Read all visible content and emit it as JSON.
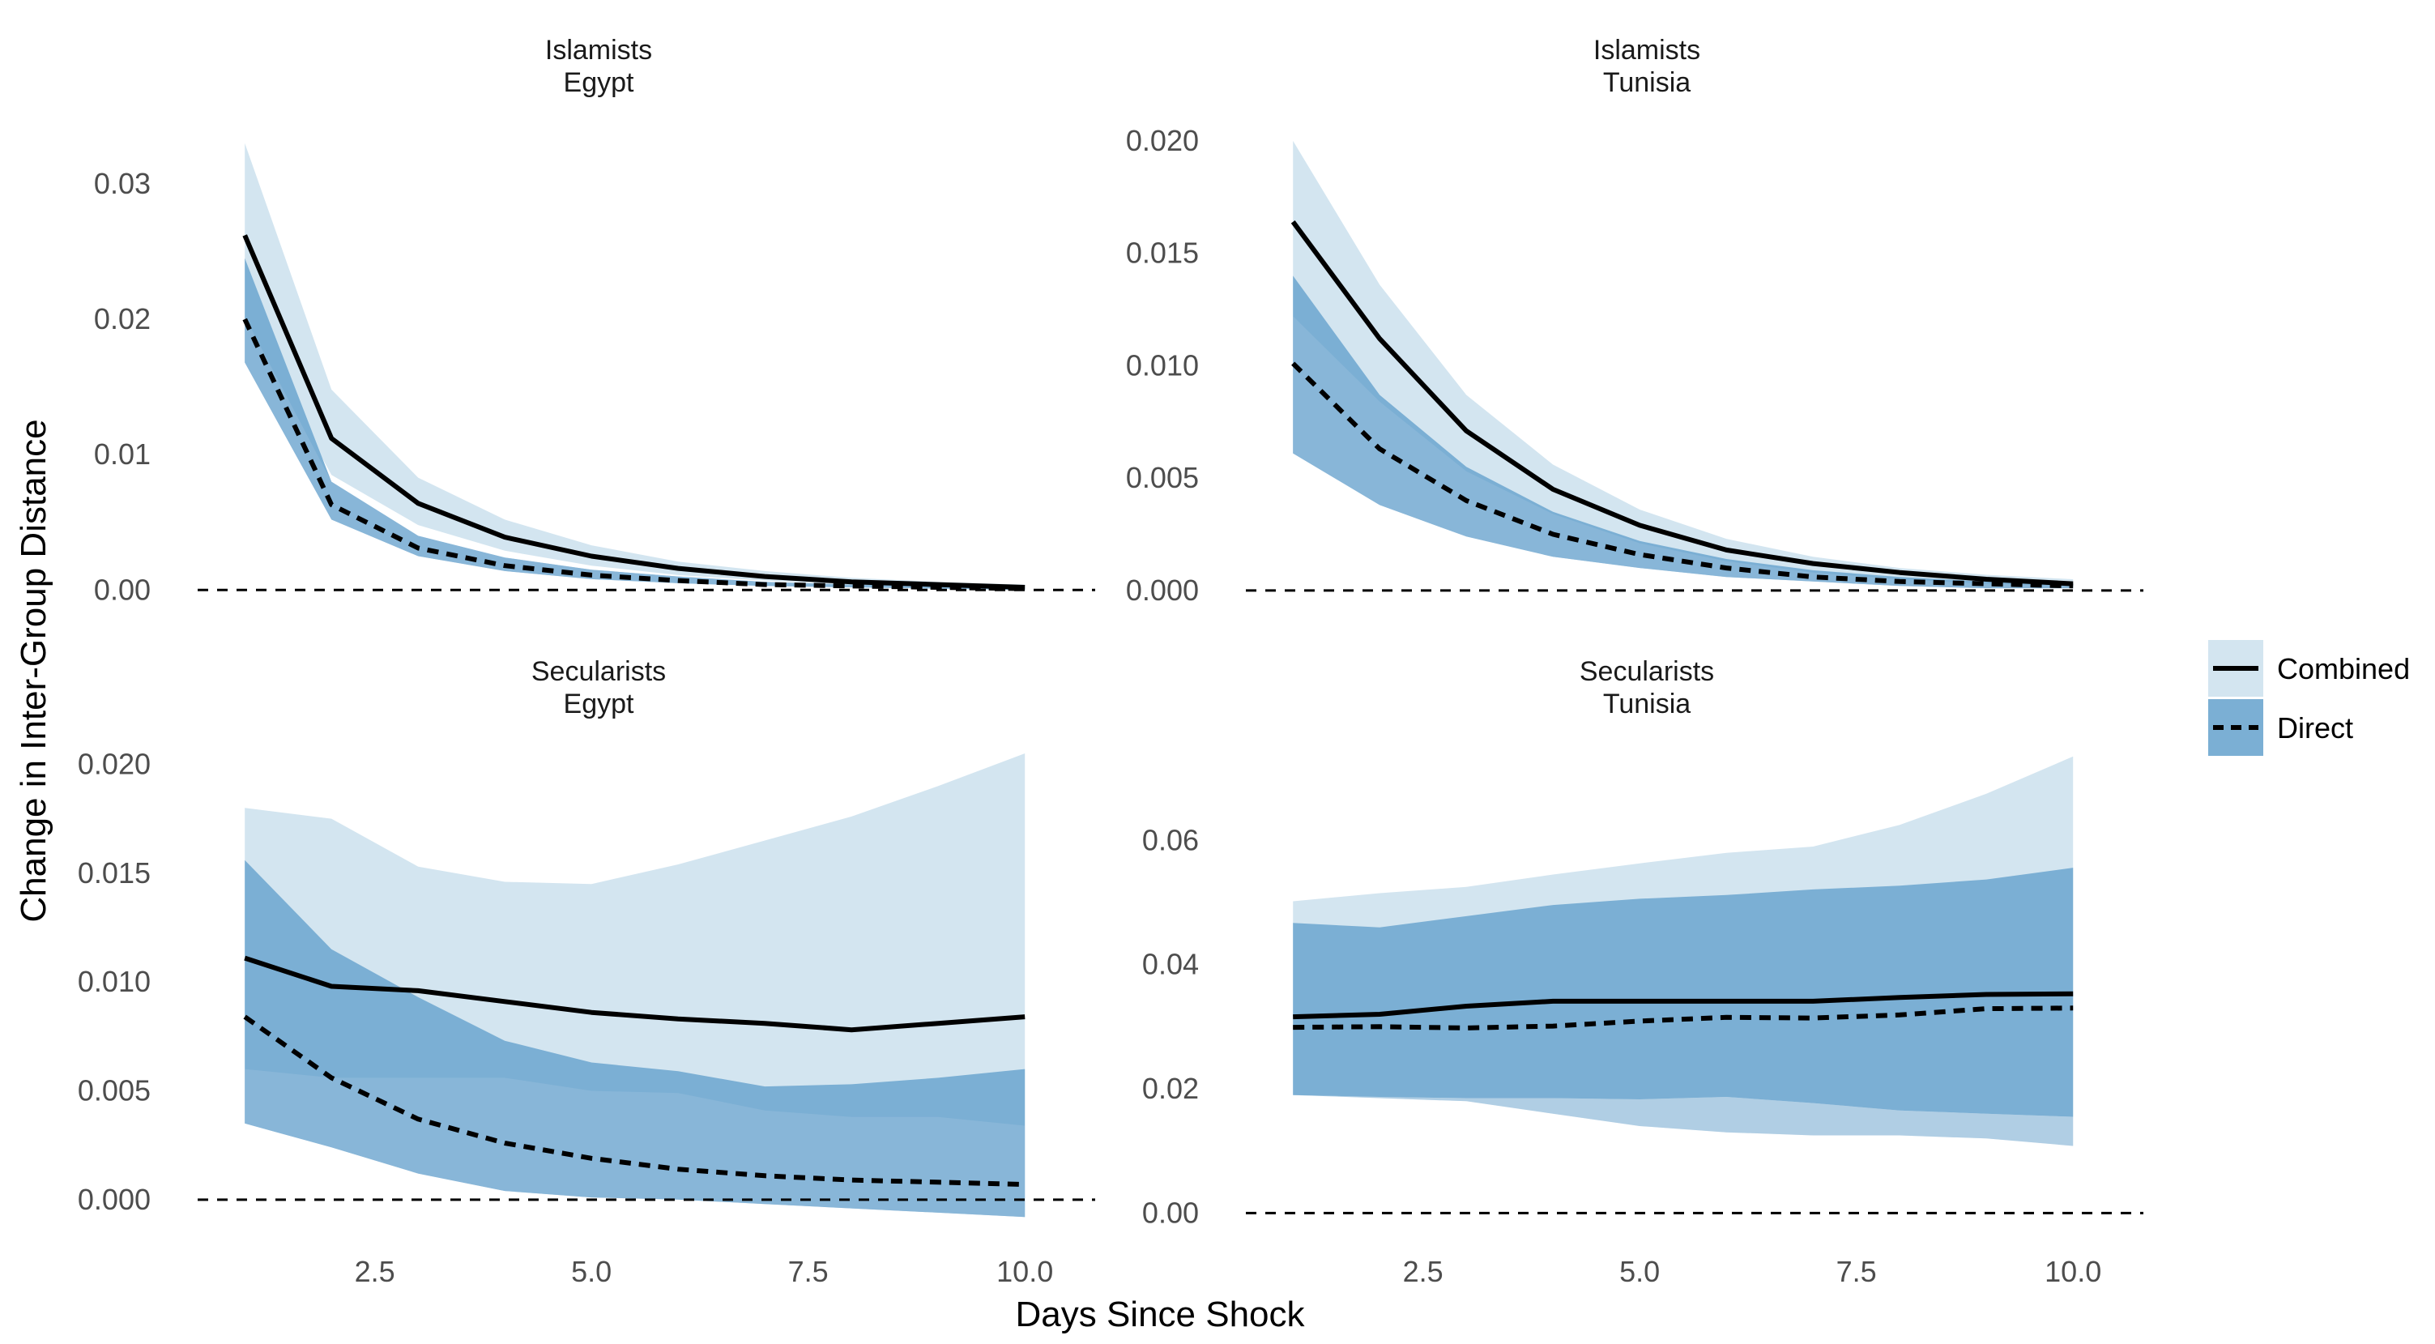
{
  "colors": {
    "combined_band": "#d3e5f0",
    "direct_band": "#7bafd4",
    "direct_band_lower": "#94bcdb",
    "line": "#000000",
    "zero_line": "#000000"
  },
  "chart_data": {
    "type": "line",
    "xlabel": "Days Since Shock",
    "ylabel": "Change in Inter-Group Distance",
    "x_ticks": [
      "2.5",
      "5.0",
      "7.5",
      "10.0"
    ],
    "grid": false,
    "legend_position": "right",
    "legend": [
      {
        "name": "Combined",
        "line_style": "solid",
        "band_color": "#d3e5f0"
      },
      {
        "name": "Direct",
        "line_style": "dashed",
        "band_color": "#7bafd4"
      }
    ],
    "x": [
      1,
      2,
      3,
      4,
      5,
      6,
      7,
      8,
      9,
      10
    ],
    "panels": [
      {
        "title_line1": "Islamists",
        "title_line2": "Egypt",
        "ylim": [
          -0.0007,
          0.034
        ],
        "y_ticks": [
          "0.00",
          "0.01",
          "0.02",
          "0.03"
        ],
        "y_tick_values": [
          0,
          0.01,
          0.02,
          0.03
        ],
        "series": [
          {
            "name": "Combined",
            "values": [
              0.0262,
              0.0112,
              0.0064,
              0.0039,
              0.0025,
              0.0016,
              0.001,
              0.0006,
              0.0004,
              0.0002
            ],
            "lower": [
              0.0202,
              0.0085,
              0.0048,
              0.0029,
              0.0018,
              0.0011,
              0.0007,
              0.0004,
              0.0002,
              0.0001
            ],
            "upper": [
              0.033,
              0.0148,
              0.0083,
              0.0052,
              0.0033,
              0.0021,
              0.0014,
              0.0009,
              0.0006,
              0.0004
            ]
          },
          {
            "name": "Direct",
            "values": [
              0.02,
              0.0063,
              0.0031,
              0.0018,
              0.0011,
              0.0007,
              0.0004,
              0.0003,
              0.0002,
              0.0001
            ],
            "lower": [
              0.0168,
              0.0052,
              0.0025,
              0.0014,
              0.0008,
              0.0005,
              0.0003,
              0.0002,
              0.0001,
              0.0
            ],
            "upper": [
              0.0245,
              0.008,
              0.004,
              0.0024,
              0.0015,
              0.001,
              0.0006,
              0.0004,
              0.0003,
              0.0002
            ]
          }
        ]
      },
      {
        "title_line1": "Islamists",
        "title_line2": "Tunisia",
        "ylim": [
          -0.0004,
          0.0205
        ],
        "y_ticks": [
          "0.000",
          "0.005",
          "0.010",
          "0.015",
          "0.020"
        ],
        "y_tick_values": [
          0,
          0.005,
          0.01,
          0.015,
          0.02
        ],
        "series": [
          {
            "name": "Combined",
            "values": [
              0.0164,
              0.0112,
              0.0071,
              0.0045,
              0.0029,
              0.0018,
              0.0012,
              0.0008,
              0.0005,
              0.0003
            ],
            "lower": [
              0.0122,
              0.0084,
              0.0053,
              0.0034,
              0.0021,
              0.0013,
              0.0008,
              0.0005,
              0.0003,
              0.0002
            ],
            "upper": [
              0.02,
              0.0136,
              0.0087,
              0.0056,
              0.0036,
              0.0023,
              0.0015,
              0.001,
              0.0007,
              0.0005
            ]
          },
          {
            "name": "Direct",
            "values": [
              0.0101,
              0.0063,
              0.004,
              0.0025,
              0.0016,
              0.001,
              0.0006,
              0.0004,
              0.0003,
              0.0002
            ],
            "lower": [
              0.0061,
              0.0038,
              0.0024,
              0.0015,
              0.001,
              0.0006,
              0.0004,
              0.0002,
              0.0001,
              0.0001
            ],
            "upper": [
              0.014,
              0.0087,
              0.0055,
              0.0035,
              0.0022,
              0.0014,
              0.0009,
              0.0006,
              0.0004,
              0.0003
            ]
          }
        ]
      },
      {
        "title_line1": "Secularists",
        "title_line2": "Egypt",
        "ylim": [
          -0.0009,
          0.0205
        ],
        "y_ticks": [
          "0.000",
          "0.005",
          "0.010",
          "0.015",
          "0.020"
        ],
        "y_tick_values": [
          0,
          0.005,
          0.01,
          0.015,
          0.02
        ],
        "series": [
          {
            "name": "Combined",
            "values": [
              0.0111,
              0.0098,
              0.0096,
              0.0091,
              0.0086,
              0.0083,
              0.0081,
              0.0078,
              0.0081,
              0.0084
            ],
            "lower": [
              0.006,
              0.0056,
              0.0056,
              0.0056,
              0.005,
              0.0049,
              0.0041,
              0.0038,
              0.0038,
              0.0034
            ],
            "upper": [
              0.018,
              0.0175,
              0.0153,
              0.0146,
              0.0145,
              0.0154,
              0.0165,
              0.0176,
              0.019,
              0.0205
            ]
          },
          {
            "name": "Direct",
            "values": [
              0.0084,
              0.0056,
              0.0037,
              0.0026,
              0.0019,
              0.0014,
              0.0011,
              0.0009,
              0.0008,
              0.0007
            ],
            "lower": [
              0.0035,
              0.0024,
              0.0012,
              0.0004,
              0.0001,
              0.0,
              -0.0002,
              -0.0004,
              -0.0006,
              -0.0008
            ],
            "upper": [
              0.0156,
              0.0115,
              0.0093,
              0.0073,
              0.0063,
              0.0059,
              0.0052,
              0.0053,
              0.0056,
              0.006
            ]
          }
        ]
      },
      {
        "title_line1": "Secularists",
        "title_line2": "Tunisia",
        "ylim": [
          -0.001,
          0.074
        ],
        "y_ticks": [
          "0.00",
          "0.02",
          "0.04",
          "0.06"
        ],
        "y_tick_values": [
          0,
          0.02,
          0.04,
          0.06
        ],
        "series": [
          {
            "name": "Combined",
            "values": [
              0.0316,
              0.032,
              0.0333,
              0.0341,
              0.0341,
              0.0341,
              0.0341,
              0.0347,
              0.0352,
              0.0353
            ],
            "lower": [
              0.019,
              0.0185,
              0.018,
              0.016,
              0.014,
              0.013,
              0.0125,
              0.0125,
              0.012,
              0.0108
            ],
            "upper": [
              0.0502,
              0.0515,
              0.0525,
              0.0545,
              0.0563,
              0.058,
              0.059,
              0.0625,
              0.0675,
              0.0735
            ]
          },
          {
            "name": "Direct",
            "values": [
              0.0299,
              0.03,
              0.0298,
              0.0301,
              0.0309,
              0.0315,
              0.0314,
              0.0319,
              0.0329,
              0.033
            ],
            "lower": [
              0.019,
              0.0187,
              0.0185,
              0.0185,
              0.0183,
              0.0187,
              0.0177,
              0.0165,
              0.016,
              0.0155
            ],
            "upper": [
              0.0467,
              0.046,
              0.0478,
              0.0496,
              0.0506,
              0.0512,
              0.0521,
              0.0527,
              0.0537,
              0.0556
            ]
          }
        ]
      }
    ]
  }
}
